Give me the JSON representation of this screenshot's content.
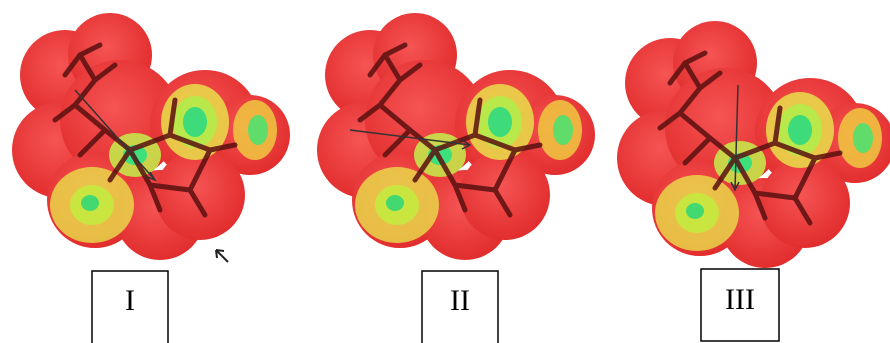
{
  "panels": [
    {
      "label": "I"
    },
    {
      "label": "II"
    },
    {
      "label": "III"
    }
  ]
}
